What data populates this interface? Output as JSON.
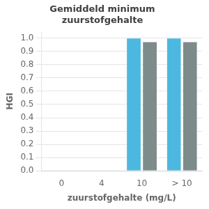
{
  "chart_data": {
    "type": "bar",
    "title": "Gemiddeld minimum\nzuurstofgehalte",
    "x_label": "zuurstofgehalte (mg/L)",
    "y_label": "HGI",
    "categories": [
      "0",
      "4",
      "10",
      "> 10"
    ],
    "series": [
      {
        "color": "#4CB8E0",
        "values": [
          null,
          null,
          1.0,
          1.0
        ]
      },
      {
        "color": "#7D8B8A",
        "values": [
          null,
          null,
          0.972,
          0.972
        ]
      }
    ],
    "ylim": [
      0.0,
      1.05
    ],
    "yticks": [
      {
        "value": 0.0,
        "label": "0.0"
      },
      0.1,
      0.2,
      0.3,
      0.4,
      0.5,
      0.6,
      0.7,
      0.8,
      0.9,
      {
        "value": 1.0,
        "label": "1.0"
      }
    ],
    "grid": true
  }
}
